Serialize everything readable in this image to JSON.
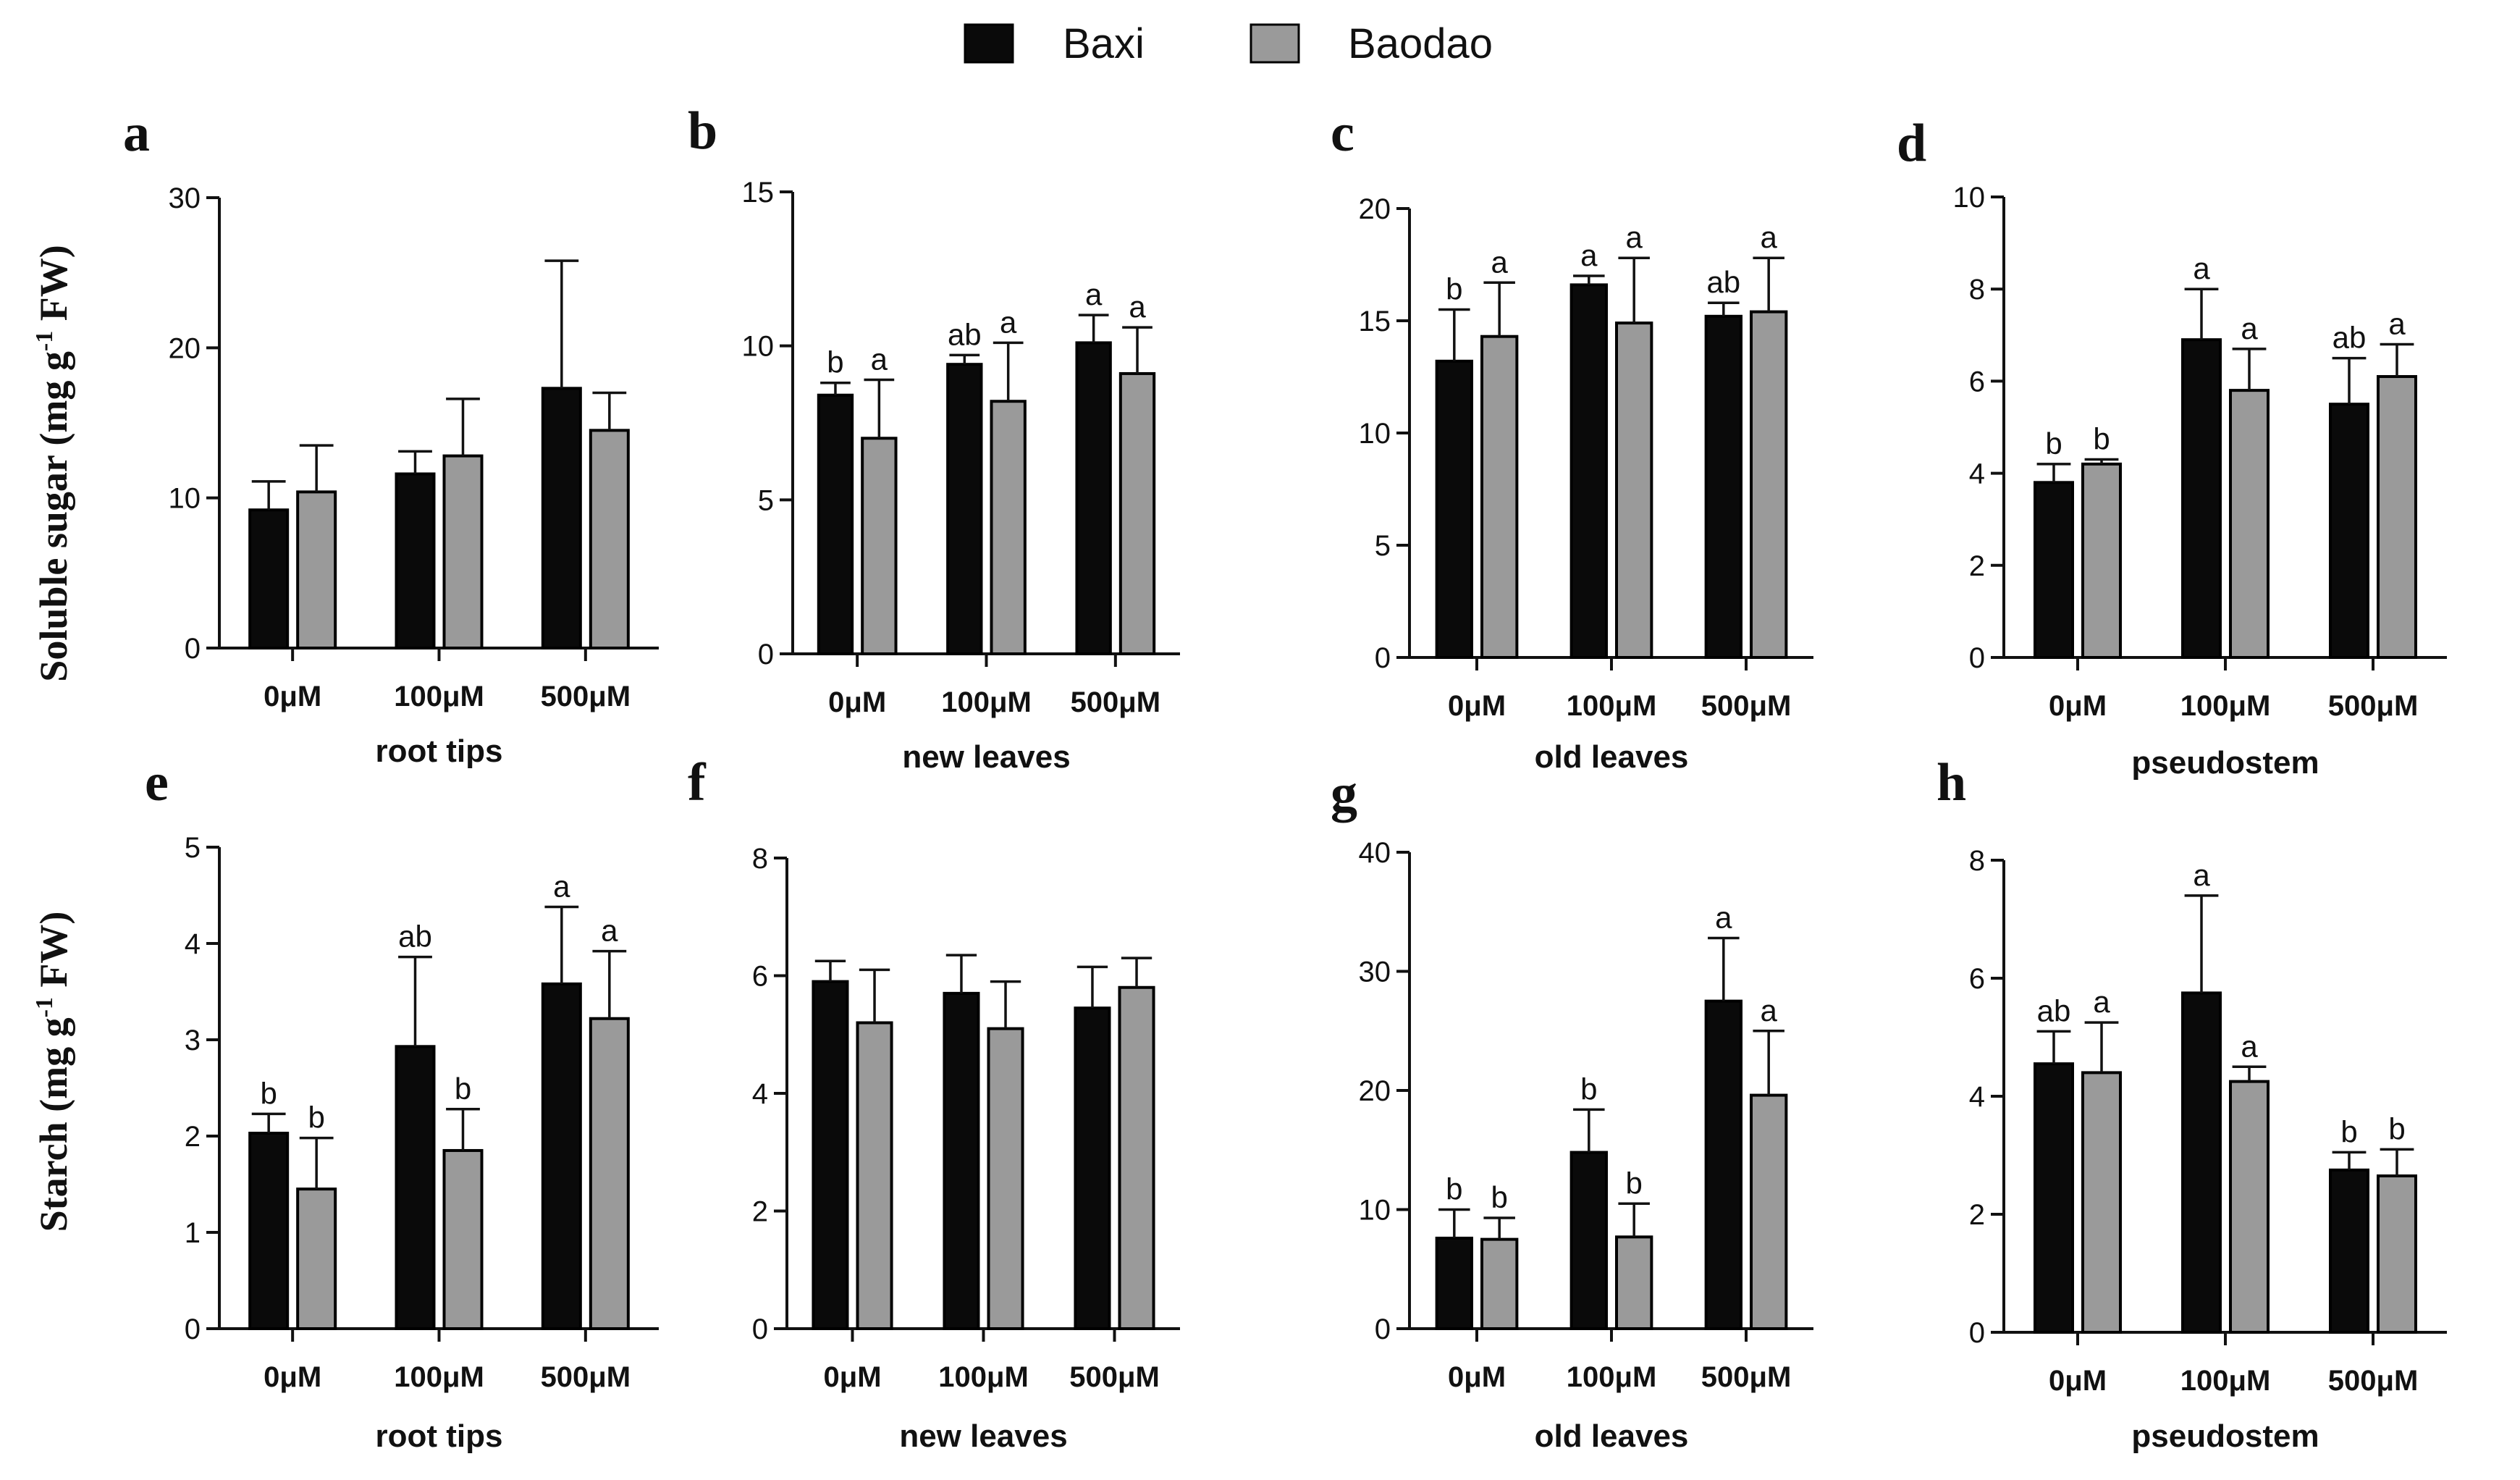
{
  "legend": {
    "items": [
      {
        "name": "Baxi",
        "color": "#0a0a0a"
      },
      {
        "name": "Baodao",
        "color": "#9a9a9a"
      }
    ]
  },
  "row_labels": {
    "top": {
      "main": "Soluble sugar (mg g",
      "sup": "-1",
      "end": " FW)"
    },
    "bottom": {
      "main": "Starch (mg g",
      "sup": "-1",
      "end": " FW)"
    }
  },
  "chart_data": [
    {
      "panel": "a",
      "type": "bar",
      "xlabel": "root tips",
      "ylabel": "Soluble sugar (mg g-1 FW)",
      "categories": [
        "0μM",
        "100μM",
        "500μM"
      ],
      "ylim": [
        0,
        30
      ],
      "yticks": [
        0,
        10,
        20,
        30
      ],
      "series": [
        {
          "name": "Baxi",
          "values": [
            9.2,
            11.6,
            17.3
          ],
          "errors": [
            1.9,
            1.5,
            8.5
          ],
          "sig": [
            "",
            "",
            ""
          ]
        },
        {
          "name": "Baodao",
          "values": [
            10.4,
            12.8,
            14.5
          ],
          "errors": [
            3.1,
            3.8,
            2.5
          ],
          "sig": [
            "",
            "",
            ""
          ]
        }
      ]
    },
    {
      "panel": "b",
      "type": "bar",
      "xlabel": "new leaves",
      "ylabel": "Soluble sugar (mg g-1 FW)",
      "categories": [
        "0μM",
        "100μM",
        "500μM"
      ],
      "ylim": [
        0,
        15
      ],
      "yticks": [
        0,
        5,
        10,
        15
      ],
      "series": [
        {
          "name": "Baxi",
          "values": [
            8.4,
            9.4,
            10.1
          ],
          "errors": [
            0.4,
            0.3,
            0.9
          ],
          "sig": [
            "b",
            "ab",
            "a"
          ]
        },
        {
          "name": "Baodao",
          "values": [
            7.0,
            8.2,
            9.1
          ],
          "errors": [
            1.9,
            1.9,
            1.5
          ],
          "sig": [
            "a",
            "a",
            "a"
          ]
        }
      ]
    },
    {
      "panel": "c",
      "type": "bar",
      "xlabel": "old leaves",
      "ylabel": "Soluble sugar (mg g-1 FW)",
      "categories": [
        "0μM",
        "100μM",
        "500μM"
      ],
      "ylim": [
        0,
        20
      ],
      "yticks": [
        0,
        5,
        10,
        15,
        20
      ],
      "series": [
        {
          "name": "Baxi",
          "values": [
            13.2,
            16.6,
            15.2
          ],
          "errors": [
            2.3,
            0.4,
            0.6
          ],
          "sig": [
            "b",
            "a",
            "ab"
          ]
        },
        {
          "name": "Baodao",
          "values": [
            14.3,
            14.9,
            15.4
          ],
          "errors": [
            2.4,
            2.9,
            2.4
          ],
          "sig": [
            "a",
            "a",
            "a"
          ]
        }
      ]
    },
    {
      "panel": "d",
      "type": "bar",
      "xlabel": "pseudostem",
      "ylabel": "Soluble sugar (mg g-1 FW)",
      "categories": [
        "0μM",
        "100μM",
        "500μM"
      ],
      "ylim": [
        0,
        10
      ],
      "yticks": [
        0,
        2,
        4,
        6,
        8,
        10
      ],
      "series": [
        {
          "name": "Baxi",
          "values": [
            3.8,
            6.9,
            5.5
          ],
          "errors": [
            0.4,
            1.1,
            1.0
          ],
          "sig": [
            "b",
            "a",
            "ab"
          ]
        },
        {
          "name": "Baodao",
          "values": [
            4.2,
            5.8,
            6.1
          ],
          "errors": [
            0.1,
            0.9,
            0.7
          ],
          "sig": [
            "b",
            "a",
            "a"
          ]
        }
      ]
    },
    {
      "panel": "e",
      "type": "bar",
      "xlabel": "root tips",
      "ylabel": "Starch (mg g-1 FW)",
      "categories": [
        "0μM",
        "100μM",
        "500μM"
      ],
      "ylim": [
        0,
        5
      ],
      "yticks": [
        0,
        1,
        2,
        3,
        4,
        5
      ],
      "series": [
        {
          "name": "Baxi",
          "values": [
            2.03,
            2.93,
            3.58
          ],
          "errors": [
            0.2,
            0.93,
            0.8
          ],
          "sig": [
            "b",
            "ab",
            "a"
          ]
        },
        {
          "name": "Baodao",
          "values": [
            1.45,
            1.85,
            3.22
          ],
          "errors": [
            0.53,
            0.43,
            0.7
          ],
          "sig": [
            "b",
            "b",
            "a"
          ]
        }
      ]
    },
    {
      "panel": "f",
      "type": "bar",
      "xlabel": "new leaves",
      "ylabel": "Starch (mg g-1 FW)",
      "categories": [
        "0μM",
        "100μM",
        "500μM"
      ],
      "ylim": [
        0,
        8
      ],
      "yticks": [
        0,
        2,
        4,
        6,
        8
      ],
      "series": [
        {
          "name": "Baxi",
          "values": [
            5.9,
            5.7,
            5.45
          ],
          "errors": [
            0.35,
            0.65,
            0.7
          ],
          "sig": [
            "",
            "",
            ""
          ]
        },
        {
          "name": "Baodao",
          "values": [
            5.2,
            5.1,
            5.8
          ],
          "errors": [
            0.9,
            0.8,
            0.5
          ],
          "sig": [
            "",
            "",
            ""
          ]
        }
      ]
    },
    {
      "panel": "g",
      "type": "bar",
      "xlabel": "old leaves",
      "ylabel": "Starch (mg g-1 FW)",
      "categories": [
        "0μM",
        "100μM",
        "500μM"
      ],
      "ylim": [
        0,
        40
      ],
      "yticks": [
        0,
        10,
        20,
        30,
        40
      ],
      "series": [
        {
          "name": "Baxi",
          "values": [
            7.6,
            14.8,
            27.5
          ],
          "errors": [
            2.4,
            3.6,
            5.3
          ],
          "sig": [
            "b",
            "b",
            "a"
          ]
        },
        {
          "name": "Baodao",
          "values": [
            7.5,
            7.7,
            19.6
          ],
          "errors": [
            1.8,
            2.8,
            5.4
          ],
          "sig": [
            "b",
            "b",
            "a"
          ]
        }
      ]
    },
    {
      "panel": "h",
      "type": "bar",
      "xlabel": "pseudostem",
      "ylabel": "Starch (mg g-1 FW)",
      "categories": [
        "0μM",
        "100μM",
        "500μM"
      ],
      "ylim": [
        0,
        8
      ],
      "yticks": [
        0,
        2,
        4,
        6,
        8
      ],
      "series": [
        {
          "name": "Baxi",
          "values": [
            4.55,
            5.75,
            2.75
          ],
          "errors": [
            0.55,
            1.65,
            0.3
          ],
          "sig": [
            "ab",
            "a",
            "b"
          ]
        },
        {
          "name": "Baodao",
          "values": [
            4.4,
            4.25,
            2.65
          ],
          "errors": [
            0.85,
            0.25,
            0.45
          ],
          "sig": [
            "a",
            "a",
            "b"
          ]
        }
      ]
    }
  ]
}
